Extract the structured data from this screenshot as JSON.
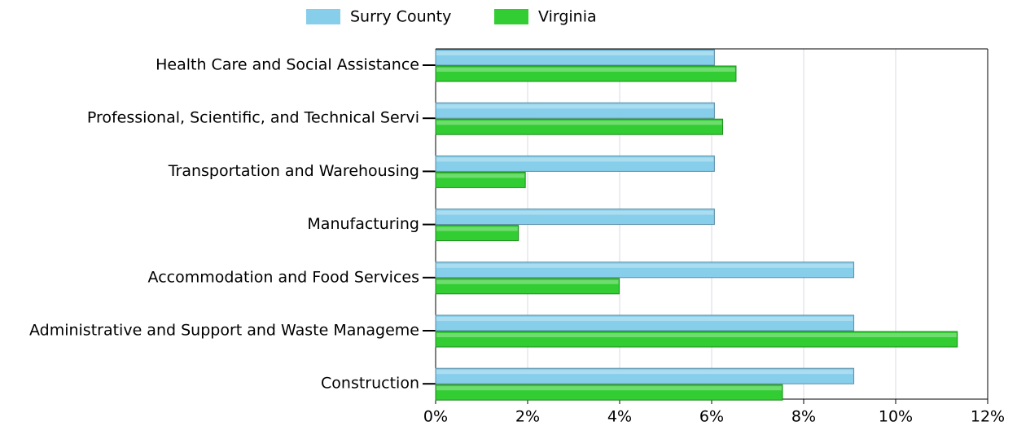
{
  "chart_data": {
    "type": "hbar",
    "categories": [
      "Health Care and Social Assistance",
      "Professional, Scientific, and Technical Servi",
      "Transportation and Warehousing",
      "Manufacturing",
      "Accommodation and Food Services",
      "Administrative and Support and Waste Manageme",
      "Construction"
    ],
    "series": [
      {
        "name": "Surry County",
        "color": "#87ceeb",
        "values": [
          6.06,
          6.06,
          6.06,
          6.06,
          9.09,
          9.09,
          9.09
        ]
      },
      {
        "name": "Virginia",
        "color": "#32cd32",
        "values": [
          6.53,
          6.24,
          1.95,
          1.8,
          3.99,
          11.34,
          7.54
        ]
      }
    ],
    "xlim": [
      0,
      12
    ],
    "xticks": [
      {
        "value": 0,
        "label": "0%"
      },
      {
        "value": 2,
        "label": "2%"
      },
      {
        "value": 4,
        "label": "4%"
      },
      {
        "value": 6,
        "label": "6%"
      },
      {
        "value": 8,
        "label": "8%"
      },
      {
        "value": 10,
        "label": "10%"
      },
      {
        "value": 12,
        "label": "12%"
      }
    ],
    "grid": true,
    "legend": "top"
  }
}
